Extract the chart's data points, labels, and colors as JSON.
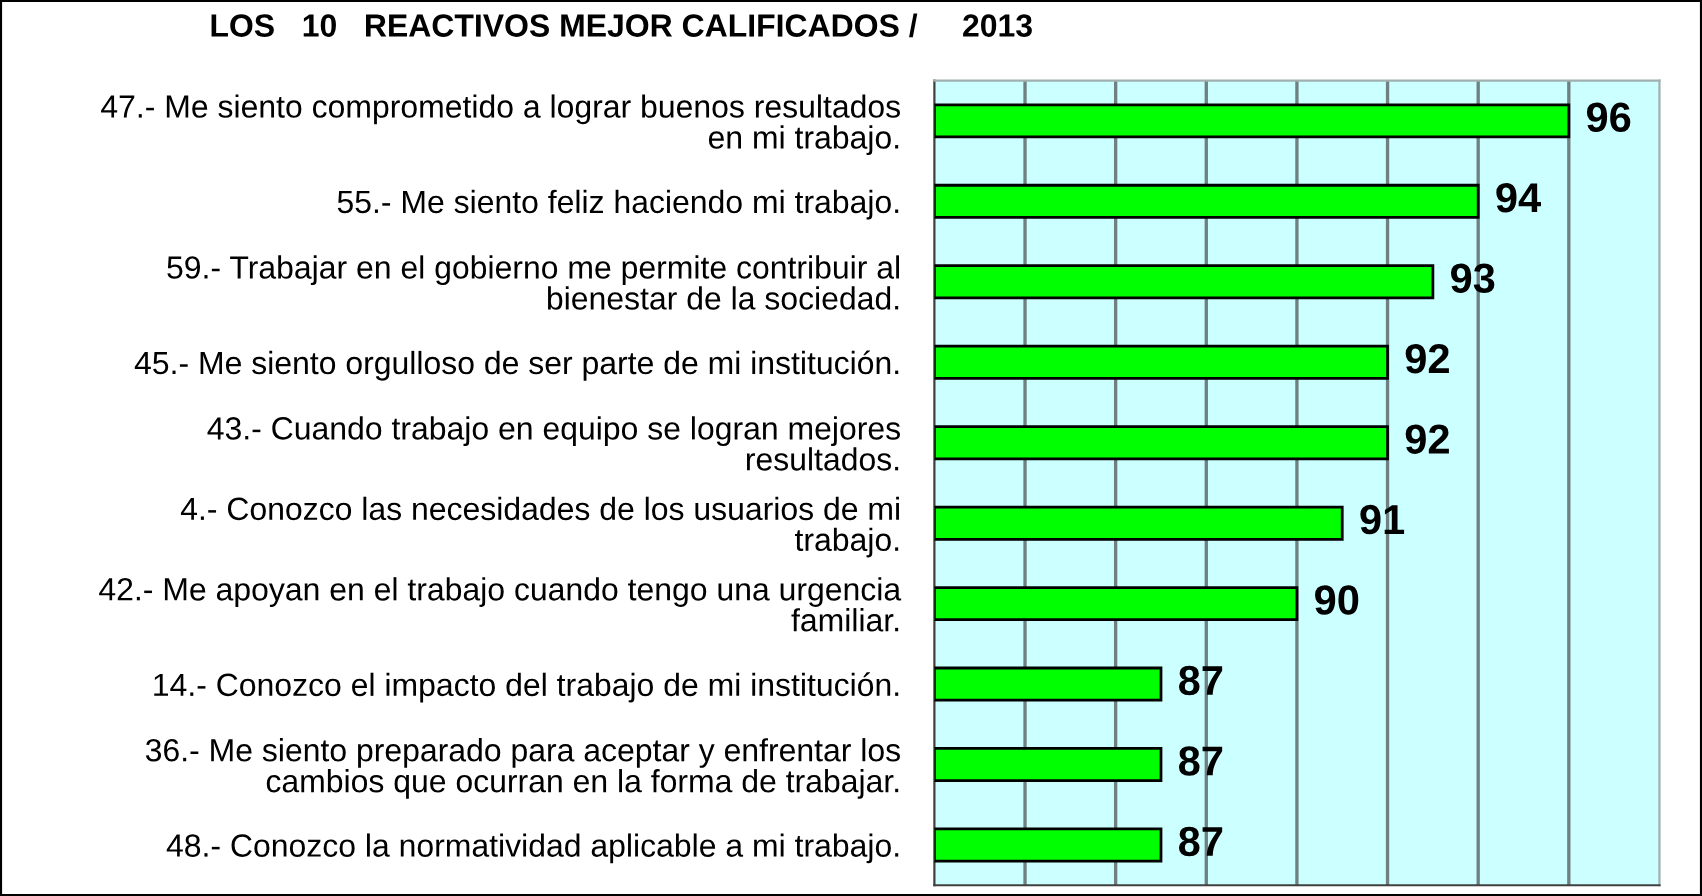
{
  "chart_data": {
    "type": "bar",
    "orientation": "horizontal",
    "title": "LOS   10   REACTIVOS MEJOR CALIFICADOS /     2013",
    "categories": [
      "47.- Me siento comprometido a lograr buenos resultados\nen mi trabajo.",
      "55.- Me siento feliz haciendo mi trabajo.",
      "59.- Trabajar en el gobierno me permite contribuir al\nbienestar de la sociedad.",
      "45.- Me siento orgulloso de ser parte de mi institución.",
      "43.- Cuando trabajo en equipo se logran mejores\nresultados.",
      "4.- Conozco las necesidades de los usuarios de mi\ntrabajo.",
      "42.- Me apoyan en el trabajo cuando tengo una urgencia\nfamiliar.",
      "14.- Conozco el impacto del trabajo de mi institución.",
      "36.- Me siento preparado para aceptar y enfrentar los\ncambios que ocurran en la forma de trabajar.",
      "48.- Conozco la normatividad aplicable a mi trabajo."
    ],
    "values": [
      96,
      94,
      93,
      92,
      92,
      91,
      90,
      87,
      87,
      87
    ],
    "color": "#00ff00",
    "xlim": [
      82,
      98
    ],
    "xticks": [
      {
        "value": 84,
        "label": null
      },
      {
        "value": 86,
        "label": null
      },
      {
        "value": 88,
        "label": null
      },
      {
        "value": 90,
        "label": null
      },
      {
        "value": 92,
        "label": null
      },
      {
        "value": 94,
        "label": null
      },
      {
        "value": 96,
        "label": null
      }
    ],
    "grid": "x",
    "data_labels": true,
    "tick_labels": "y"
  }
}
